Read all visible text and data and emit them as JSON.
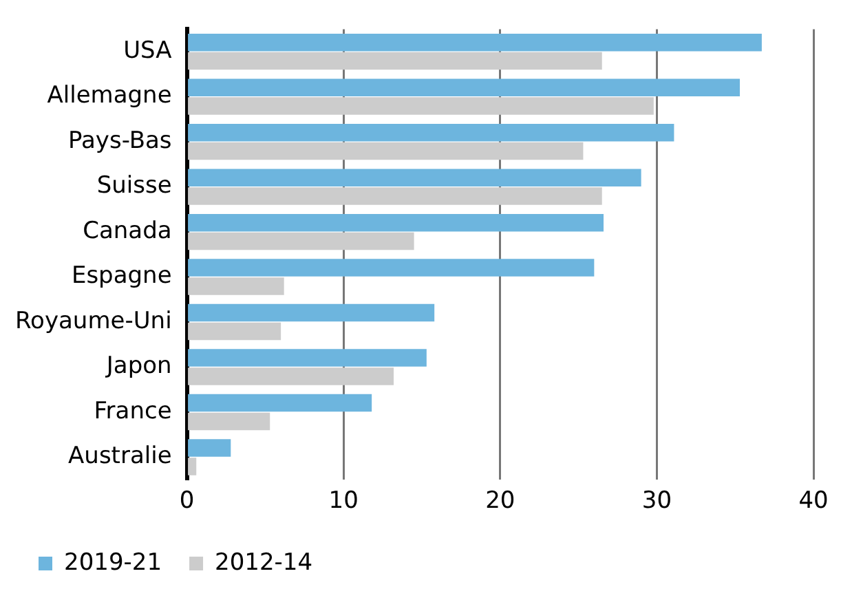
{
  "chart_data": {
    "type": "bar",
    "orientation": "horizontal",
    "categories": [
      "USA",
      "Allemagne",
      "Pays-Bas",
      "Suisse",
      "Canada",
      "Espagne",
      "Royaume-Uni",
      "Japon",
      "France",
      "Australie"
    ],
    "series": [
      {
        "name": "2019-21",
        "color": "#6db5de",
        "values": [
          36.7,
          35.3,
          31.1,
          29.0,
          26.6,
          26.0,
          15.8,
          15.3,
          11.8,
          2.8
        ]
      },
      {
        "name": "2012-14",
        "color": "#cccccc",
        "values": [
          26.5,
          29.8,
          25.3,
          26.5,
          14.5,
          6.2,
          6.0,
          13.2,
          5.3,
          0.6
        ]
      }
    ],
    "xlim": [
      0,
      40
    ],
    "xticks": [
      0,
      10,
      20,
      30,
      40
    ],
    "grid": "x",
    "legend": "bottom left"
  }
}
